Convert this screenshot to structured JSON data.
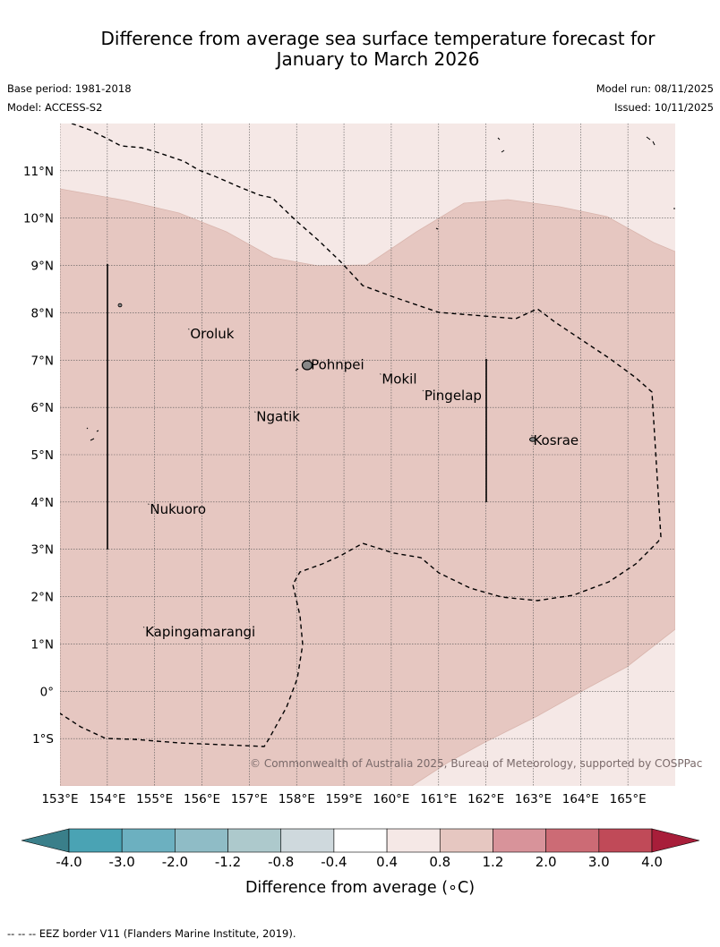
{
  "title_line1": "Difference from average sea surface temperature forecast for",
  "title_line2": "January to March 2026",
  "base_period": "Base period: 1981-2018",
  "model": "Model: ACCESS-S2",
  "model_run": "Model run: 08/11/2025",
  "issued": "Issued: 10/11/2025",
  "credit": "© Commonwealth of Australia 2025, Bureau of Meteorology, supported by COSPPac",
  "footnote": "-- -- -- EEZ border V11 (Flanders Marine Institute, 2019).",
  "map": {
    "lon_range": [
      153,
      166
    ],
    "lat_range": [
      -2,
      12
    ],
    "lon_ticks": [
      "153°E",
      "154°E",
      "155°E",
      "156°E",
      "157°E",
      "158°E",
      "159°E",
      "160°E",
      "161°E",
      "162°E",
      "163°E",
      "164°E",
      "165°E"
    ],
    "lat_ticks": [
      "11°N",
      "10°N",
      "9°N",
      "8°N",
      "7°N",
      "6°N",
      "5°N",
      "4°N",
      "3°N",
      "2°N",
      "1°N",
      "0°",
      "1°S"
    ],
    "places": [
      {
        "name": "Oroluk",
        "lon": 155.75,
        "lat": 7.55
      },
      {
        "name": "Pohnpei",
        "lon": 158.3,
        "lat": 6.9
      },
      {
        "name": "Mokil",
        "lon": 159.8,
        "lat": 6.6
      },
      {
        "name": "Pingelap",
        "lon": 160.7,
        "lat": 6.25
      },
      {
        "name": "Ngatik",
        "lon": 157.15,
        "lat": 5.8
      },
      {
        "name": "Kosrae",
        "lon": 163.0,
        "lat": 5.3
      },
      {
        "name": "Nukuoro",
        "lon": 154.9,
        "lat": 3.85
      },
      {
        "name": "Kapingamarangi",
        "lon": 154.8,
        "lat": 1.25
      }
    ]
  },
  "legend": {
    "title": "Difference from average (∘C)",
    "ticks": [
      "-4.0",
      "-3.0",
      "-2.0",
      "-1.2",
      "-0.8",
      "-0.4",
      "0.4",
      "0.8",
      "1.2",
      "2.0",
      "3.0",
      "4.0"
    ],
    "colors": {
      "under": "#3a7f8a",
      "bins": [
        "#4aa3b4",
        "#6cb0c0",
        "#8fbcc6",
        "#adc9cc",
        "#cfd9dd",
        "#ffffff",
        "#f5e8e6",
        "#e6c7c1",
        "#d8939a",
        "#cc6b75",
        "#c04a58"
      ],
      "over": "#a81e3a"
    }
  },
  "colors": {
    "anomaly_0.4_0.8": "#f5e8e6",
    "anomaly_0.8_1.2": "#e6c7c1"
  }
}
